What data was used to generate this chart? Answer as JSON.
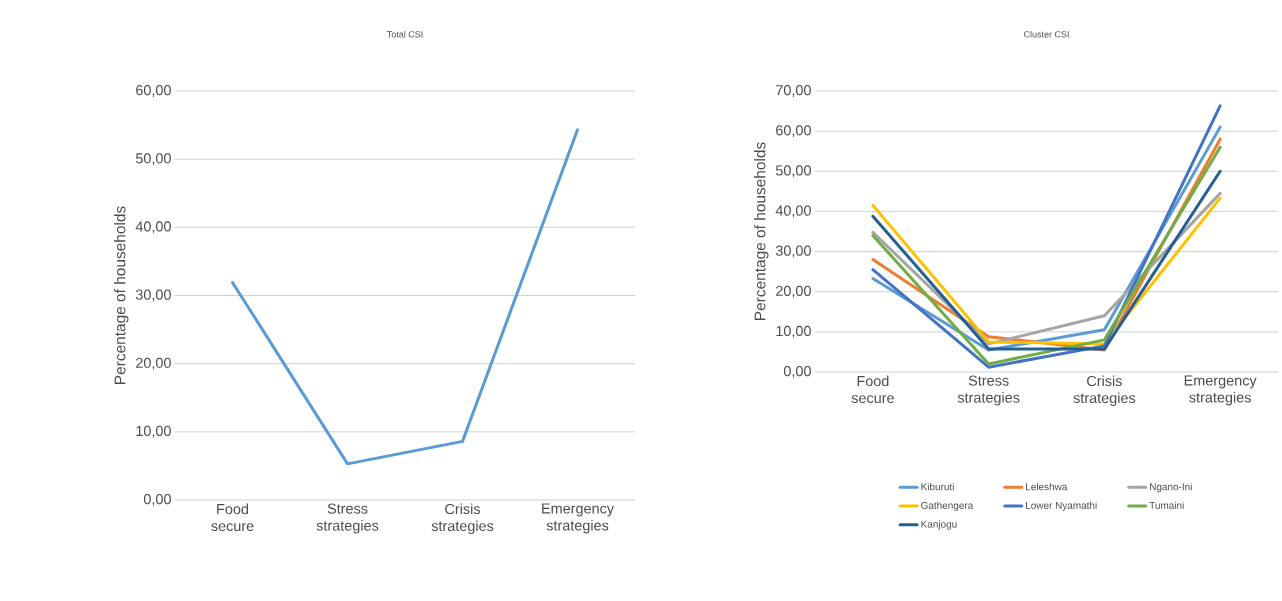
{
  "chart_data": [
    {
      "type": "line",
      "title": "Total CSI",
      "ylabel": "Percentage of households",
      "categories": [
        "Food secure",
        "Stress strategies",
        "Crisis strategies",
        "Emergency strategies"
      ],
      "values": [
        31.9,
        5.3,
        8.6,
        54.3
      ],
      "color": "#5b9bd5",
      "ylim": [
        0,
        60
      ],
      "yticks": [
        {
          "value": 0,
          "label": "0,00"
        },
        {
          "value": 10,
          "label": "10,00"
        },
        {
          "value": 20,
          "label": "20,00"
        },
        {
          "value": 30,
          "label": "30,00"
        },
        {
          "value": 40,
          "label": "40,00"
        },
        {
          "value": 50,
          "label": "50,00"
        },
        {
          "value": 60,
          "label": "60,00"
        }
      ],
      "grid": "y",
      "legend": false
    },
    {
      "type": "line",
      "title": "Cluster CSI",
      "ylabel": "Percentage of households",
      "categories": [
        "Food secure",
        "Stress strategies",
        "Crisis strategies",
        "Emergency strategies"
      ],
      "series": [
        {
          "name": "Kiburuti",
          "color": "#5b9bd5",
          "values": [
            23.3,
            5.5,
            10.5,
            61.0
          ]
        },
        {
          "name": "Leleshwa",
          "color": "#ed7d31",
          "values": [
            28.0,
            8.8,
            5.5,
            58.0
          ]
        },
        {
          "name": "Ngano-Ini",
          "color": "#a5a5a5",
          "values": [
            34.8,
            7.0,
            14.0,
            44.5
          ]
        },
        {
          "name": "Gathengera",
          "color": "#ffc000",
          "values": [
            41.5,
            7.5,
            7.0,
            43.3
          ]
        },
        {
          "name": "Lower Nyamathi",
          "color": "#4472c4",
          "values": [
            25.5,
            1.2,
            6.5,
            66.3
          ]
        },
        {
          "name": "Tumaini",
          "color": "#70ad47",
          "values": [
            34.0,
            2.0,
            8.0,
            56.0
          ]
        },
        {
          "name": "Kanjogu",
          "color": "#255e91",
          "values": [
            38.8,
            5.7,
            5.7,
            50.0
          ]
        }
      ],
      "ylim": [
        0,
        70
      ],
      "yticks": [
        {
          "value": 0,
          "label": "0,00"
        },
        {
          "value": 10,
          "label": "10,00"
        },
        {
          "value": 20,
          "label": "20,00"
        },
        {
          "value": 30,
          "label": "30,00"
        },
        {
          "value": 40,
          "label": "40,00"
        },
        {
          "value": 50,
          "label": "50,00"
        },
        {
          "value": 60,
          "label": "60,00"
        },
        {
          "value": 70,
          "label": "70,00"
        }
      ],
      "grid": "y",
      "legend": "bottom"
    }
  ]
}
